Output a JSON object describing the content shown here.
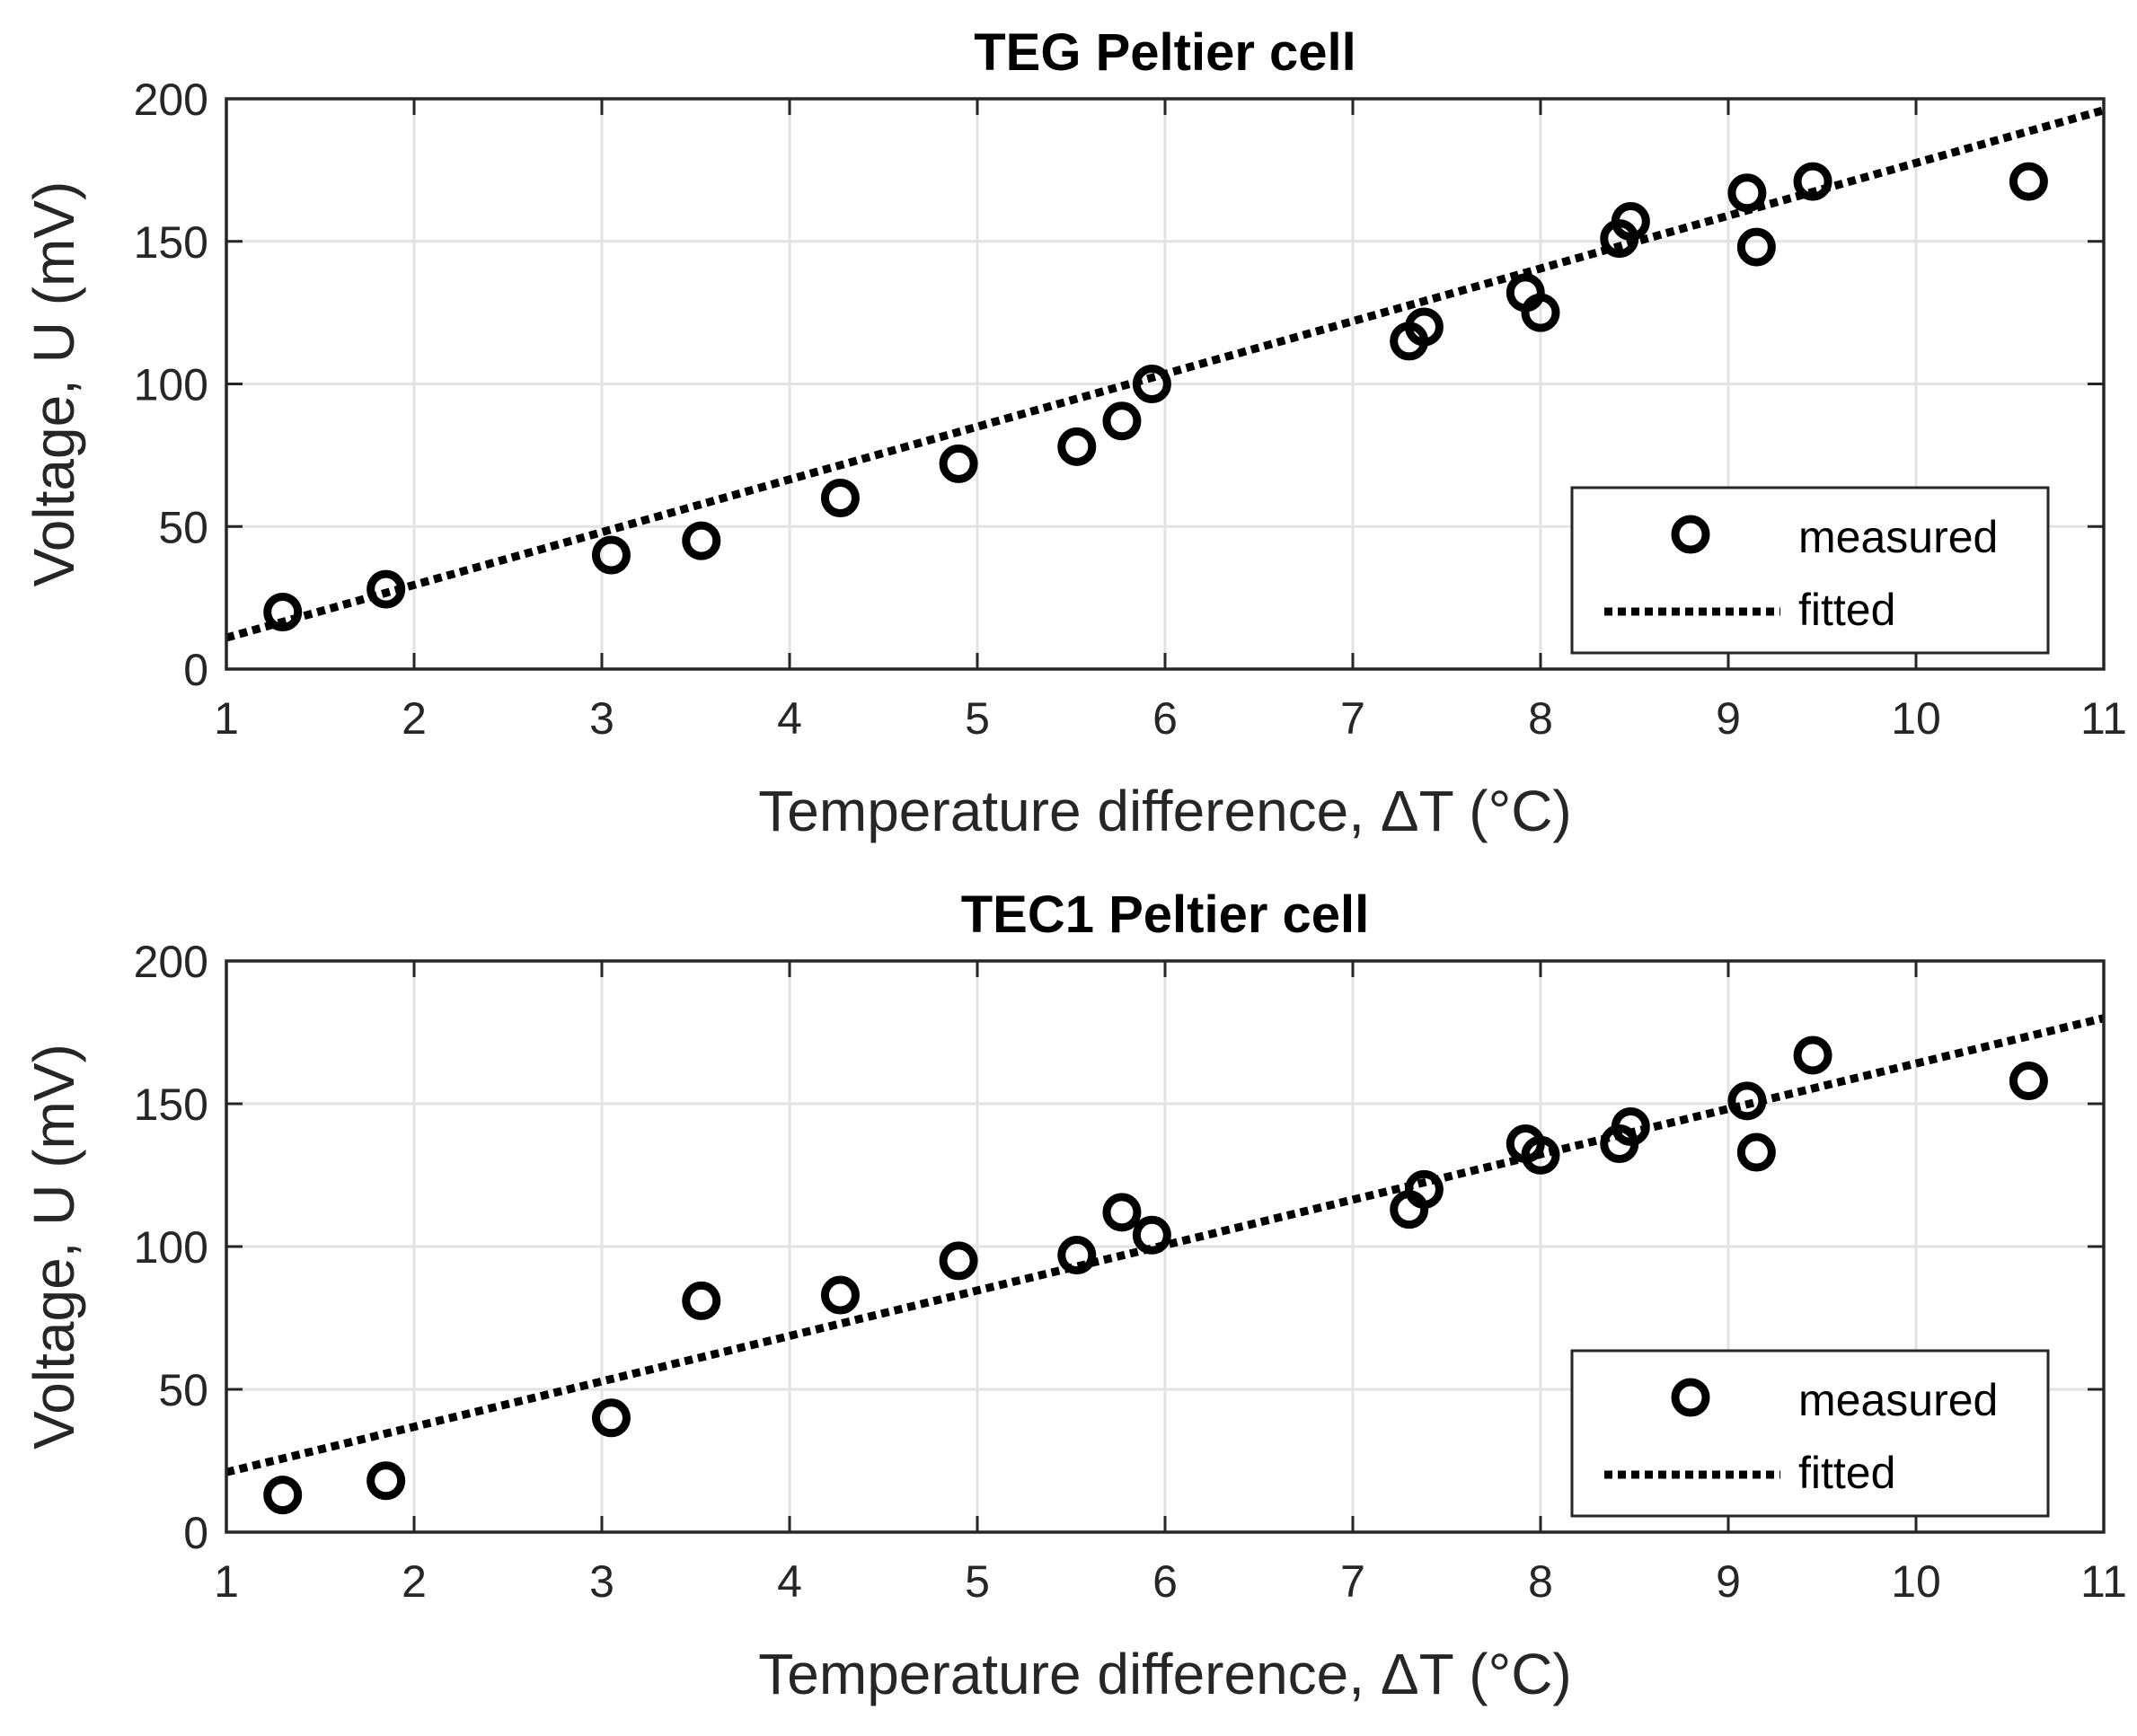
{
  "chart_data": [
    {
      "type": "scatter",
      "title": "TEG Peltier cell",
      "xlabel": "Temperature difference, ΔT (°C)",
      "ylabel": "Voltage, U (mV)",
      "xlim": [
        1,
        11
      ],
      "ylim": [
        0,
        200
      ],
      "xticks": [
        1,
        2,
        3,
        4,
        5,
        6,
        7,
        8,
        9,
        10,
        11
      ],
      "yticks": [
        0,
        50,
        100,
        150,
        200
      ],
      "grid": true,
      "legend_position": "bottom-right",
      "series": [
        {
          "name": "measured",
          "kind": "markers",
          "x": [
            1.3,
            1.85,
            3.05,
            3.53,
            4.27,
            4.9,
            5.53,
            5.77,
            5.93,
            7.3,
            7.38,
            7.92,
            8.0,
            8.42,
            8.48,
            9.1,
            9.15,
            9.45,
            10.6
          ],
          "y": [
            20,
            28,
            40,
            45,
            60,
            72,
            78,
            87,
            100,
            115,
            120,
            132,
            125,
            151,
            157,
            167,
            148,
            171,
            171
          ]
        },
        {
          "name": "fitted",
          "kind": "dotted-line",
          "x": [
            1,
            11
          ],
          "y": [
            11,
            196
          ]
        }
      ]
    },
    {
      "type": "scatter",
      "title": "TEC1 Peltier cell",
      "xlabel": "Temperature difference, ΔT (°C)",
      "ylabel": "Voltage, U (mV)",
      "xlim": [
        1,
        11
      ],
      "ylim": [
        0,
        200
      ],
      "xticks": [
        1,
        2,
        3,
        4,
        5,
        6,
        7,
        8,
        9,
        10,
        11
      ],
      "yticks": [
        0,
        50,
        100,
        150,
        200
      ],
      "grid": true,
      "legend_position": "bottom-right",
      "series": [
        {
          "name": "measured",
          "kind": "markers",
          "x": [
            1.3,
            1.85,
            3.05,
            3.53,
            4.27,
            4.9,
            5.53,
            5.77,
            5.93,
            7.3,
            7.38,
            7.92,
            8.0,
            8.42,
            8.48,
            9.1,
            9.15,
            9.45,
            10.6
          ],
          "y": [
            13,
            18,
            40,
            81,
            83,
            95,
            97,
            112,
            104,
            113,
            120,
            136,
            132,
            136,
            142,
            151,
            133,
            167,
            158
          ]
        },
        {
          "name": "fitted",
          "kind": "dotted-line",
          "x": [
            1,
            11
          ],
          "y": [
            21,
            180
          ]
        }
      ]
    }
  ]
}
